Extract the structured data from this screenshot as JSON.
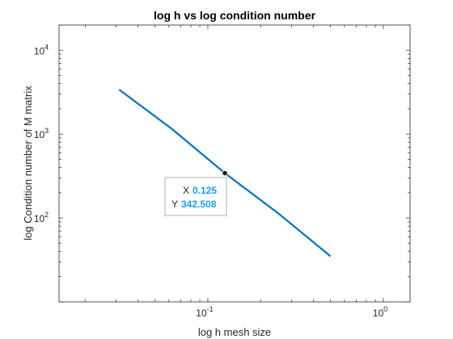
{
  "chart_data": {
    "type": "line",
    "title": "log h vs log condition number",
    "xlabel": "log h mesh size",
    "ylabel": "log Condition number of M matrix",
    "xscale": "log",
    "yscale": "log",
    "xlim": [
      0.0142,
      1.42
    ],
    "ylim": [
      10,
      20000
    ],
    "grid": false,
    "x_ticks": [
      {
        "base": "10",
        "exp": "-1",
        "value": 0.1
      },
      {
        "base": "10",
        "exp": "0",
        "value": 1
      }
    ],
    "y_ticks": [
      {
        "base": "10",
        "exp": "2",
        "value": 100
      },
      {
        "base": "10",
        "exp": "3",
        "value": 1000
      },
      {
        "base": "10",
        "exp": "4",
        "value": 10000
      }
    ],
    "series": [
      {
        "color": "#0072bd",
        "x": [
          0.03125,
          0.0625,
          0.125,
          0.25,
          0.5
        ],
        "y": [
          3400,
          1150,
          342.508,
          115,
          35
        ]
      }
    ],
    "datatip": {
      "x_label": "X",
      "x_value": "0.125",
      "y_label": "Y",
      "y_value": "342.508",
      "x": 0.125,
      "y": 342.508
    }
  }
}
